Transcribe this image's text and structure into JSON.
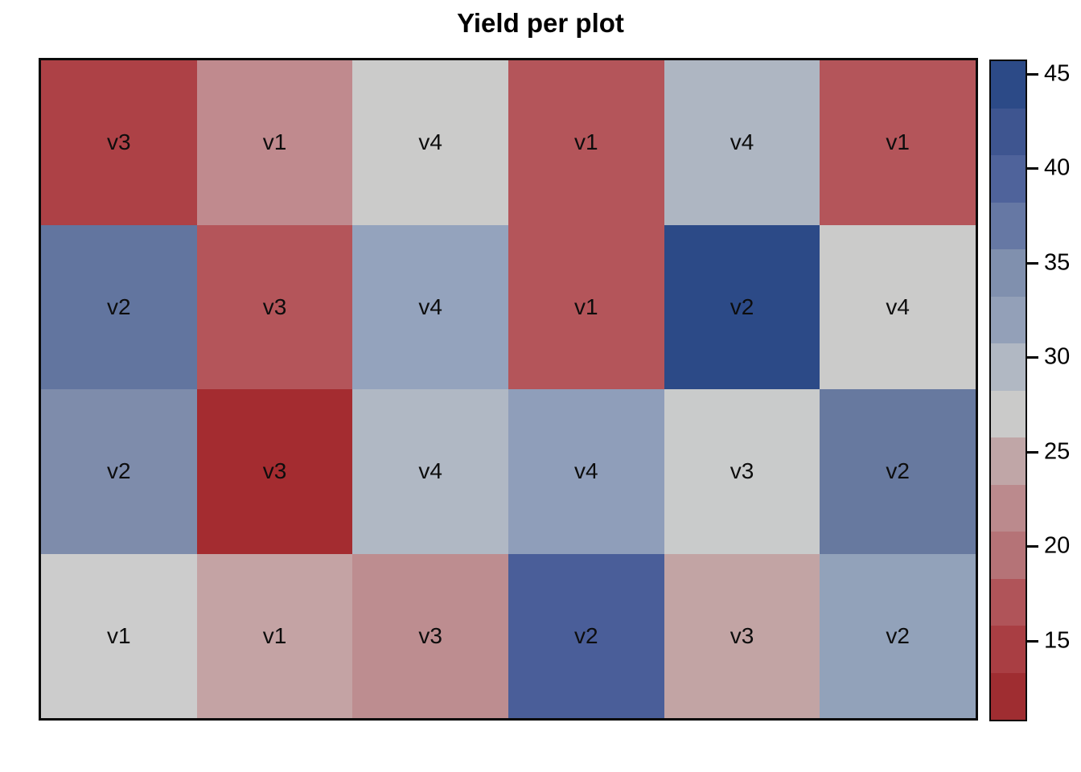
{
  "chart_data": {
    "type": "heatmap",
    "title": "Yield per plot",
    "rows": 4,
    "cols": 6,
    "cells": [
      [
        {
          "label": "v3",
          "value": 14.5,
          "color": "#ad4146"
        },
        {
          "label": "v1",
          "value": 22,
          "color": "#c08a8e"
        },
        {
          "label": "v4",
          "value": 27,
          "color": "#cbcbca"
        },
        {
          "label": "v1",
          "value": 17,
          "color": "#b4555a"
        },
        {
          "label": "v4",
          "value": 29.5,
          "color": "#aeb6c2"
        },
        {
          "label": "v1",
          "value": 17,
          "color": "#b4555a"
        }
      ],
      [
        {
          "label": "v2",
          "value": 37,
          "color": "#62759f"
        },
        {
          "label": "v3",
          "value": 17,
          "color": "#b4555a"
        },
        {
          "label": "v4",
          "value": 32,
          "color": "#94a3bd"
        },
        {
          "label": "v1",
          "value": 17,
          "color": "#b4555a"
        },
        {
          "label": "v2",
          "value": 44.5,
          "color": "#2c4a87"
        },
        {
          "label": "v4",
          "value": 27,
          "color": "#cbcbca"
        }
      ],
      [
        {
          "label": "v2",
          "value": 34.5,
          "color": "#7e8cab"
        },
        {
          "label": "v3",
          "value": 12,
          "color": "#a42c30"
        },
        {
          "label": "v4",
          "value": 29.5,
          "color": "#b0b8c4"
        },
        {
          "label": "v4",
          "value": 32,
          "color": "#8f9eba"
        },
        {
          "label": "v3",
          "value": 27,
          "color": "#c9cbcb"
        },
        {
          "label": "v2",
          "value": 37,
          "color": "#67799f"
        }
      ],
      [
        {
          "label": "v1",
          "value": 27,
          "color": "#cccccc"
        },
        {
          "label": "v1",
          "value": 24.5,
          "color": "#c4a3a4"
        },
        {
          "label": "v3",
          "value": 22,
          "color": "#bd8d90"
        },
        {
          "label": "v2",
          "value": 39.5,
          "color": "#4a5e99"
        },
        {
          "label": "v3",
          "value": 24.5,
          "color": "#c2a4a4"
        },
        {
          "label": "v2",
          "value": 32,
          "color": "#92a2ba"
        }
      ]
    ],
    "colorbar": {
      "vmin": 10.75,
      "vmax": 45.75,
      "tick_values": [
        45,
        40,
        35,
        30,
        25,
        20,
        15
      ],
      "colors_top_to_bottom": [
        "#2c4a87",
        "#3e5590",
        "#4f639b",
        "#6678a4",
        "#8090ae",
        "#93a0b8",
        "#b1b8c3",
        "#cacac9",
        "#c0a6a7",
        "#bb8a8d",
        "#b57377",
        "#b05459",
        "#a93e43",
        "#9f2d31"
      ]
    },
    "layout": {
      "grid_lines": false,
      "legend_position": "right-colorbar",
      "background": "#ffffff"
    }
  }
}
